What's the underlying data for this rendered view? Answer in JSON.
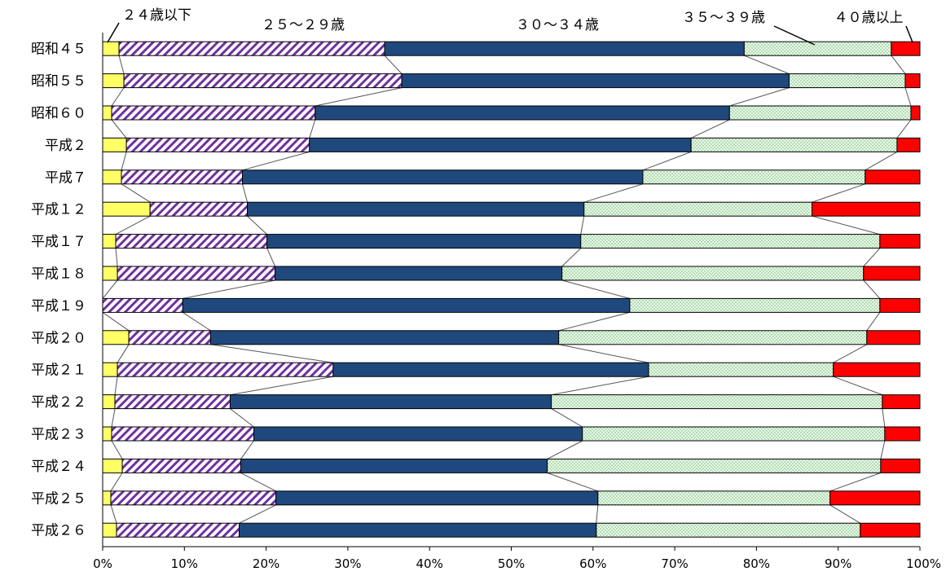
{
  "chart_data": {
    "type": "bar",
    "orientation": "horizontal",
    "stacked": true,
    "percent": true,
    "categories": [
      "昭和４５",
      "昭和５５",
      "昭和６０",
      "平成２",
      "平成７",
      "平成１２",
      "平成１７",
      "平成１８",
      "平成１９",
      "平成２０",
      "平成２１",
      "平成２２",
      "平成２３",
      "平成２４",
      "平成２５",
      "平成２６"
    ],
    "series": [
      {
        "name": "２４歳以下",
        "color": "#ffff66",
        "pattern": "solid",
        "values": [
          2.0,
          2.6,
          1.1,
          2.9,
          2.3,
          5.8,
          1.6,
          1.8,
          0.0,
          3.2,
          1.8,
          1.5,
          1.1,
          2.4,
          1.0,
          1.7
        ]
      },
      {
        "name": "２５～２９歳",
        "color": "#7030a0",
        "pattern": "hatch",
        "values": [
          32.5,
          34.0,
          24.9,
          22.4,
          14.8,
          11.9,
          18.5,
          19.3,
          9.8,
          10.0,
          26.4,
          14.1,
          17.4,
          14.5,
          20.2,
          15.0
        ]
      },
      {
        "name": "３０～３４歳",
        "color": "#1f497d",
        "pattern": "solid",
        "values": [
          44.0,
          47.4,
          50.7,
          46.7,
          49.0,
          41.2,
          38.4,
          35.1,
          54.7,
          42.6,
          38.6,
          39.3,
          40.2,
          37.5,
          39.4,
          43.7
        ]
      },
      {
        "name": "３５～３９歳",
        "color": "#ccffcc",
        "pattern": "dots",
        "values": [
          18.0,
          14.2,
          22.2,
          25.2,
          27.2,
          27.9,
          36.6,
          36.9,
          30.6,
          37.7,
          22.6,
          40.5,
          37.0,
          40.8,
          28.4,
          32.3
        ]
      },
      {
        "name": "４０歳以上",
        "color": "#ff0000",
        "pattern": "solid",
        "values": [
          3.5,
          1.8,
          1.1,
          2.8,
          6.7,
          13.2,
          4.9,
          6.9,
          4.9,
          6.5,
          10.6,
          4.6,
          4.3,
          4.8,
          11.0,
          7.3
        ]
      }
    ],
    "x_ticks": [
      "0%",
      "10%",
      "20%",
      "30%",
      "40%",
      "50%",
      "60%",
      "70%",
      "80%",
      "90%",
      "100%"
    ],
    "xlim": [
      0,
      100
    ],
    "grid": true,
    "legend_placement": "top, leader-line labels"
  }
}
